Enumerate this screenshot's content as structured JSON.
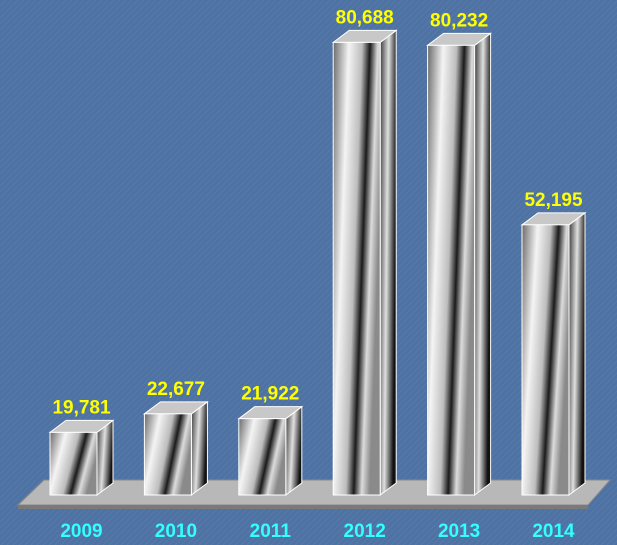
{
  "chart_data": {
    "type": "bar3d",
    "categories": [
      "2009",
      "2010",
      "2011",
      "2012",
      "2013",
      "2014"
    ],
    "values": [
      19781,
      22677,
      21922,
      80688,
      80232,
      52195
    ],
    "value_labels": [
      "19,781",
      "22,677",
      "21,922",
      "80,688",
      "80,232",
      "52,195"
    ],
    "ylim": [
      10000,
      82000
    ],
    "color": "#c8c8c8",
    "value_label_color": "#ffff00",
    "category_label_color": "#33ffff",
    "background_color": "#4d72a3"
  }
}
